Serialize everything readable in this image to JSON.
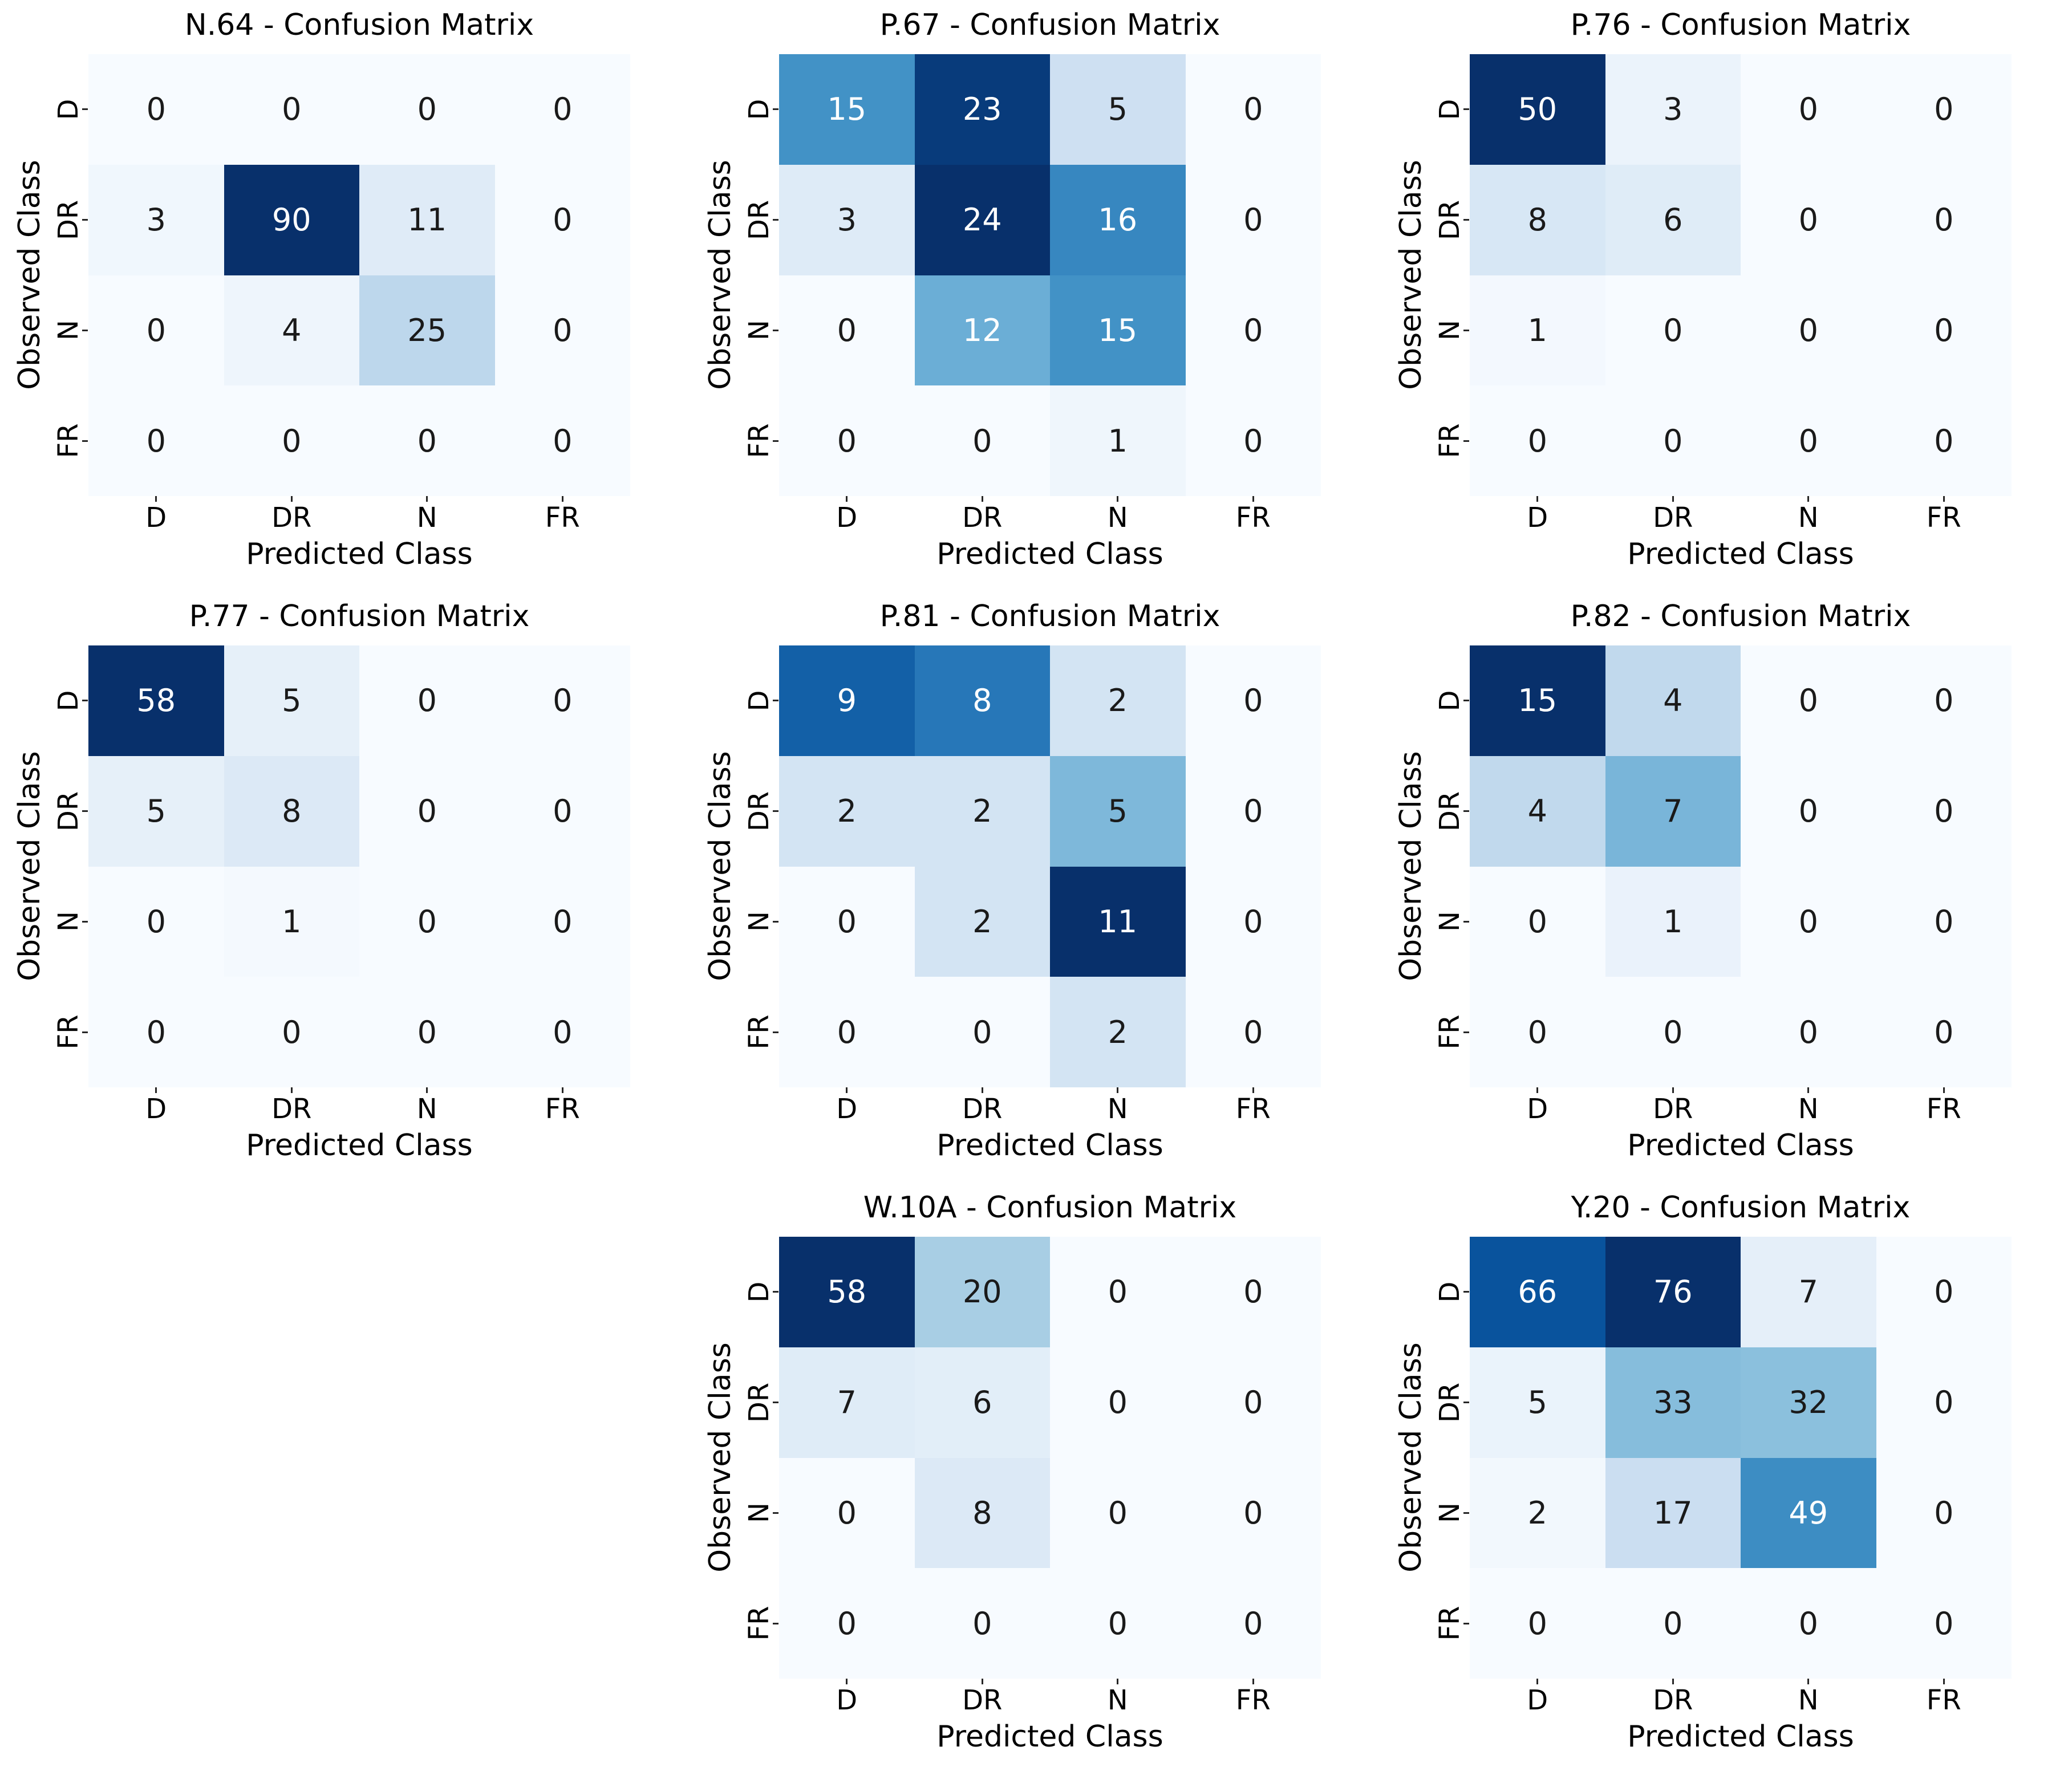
{
  "figure_background": "#ffffff",
  "palette": {
    "colormap": "Blues",
    "cmap_low": "#f7fbff",
    "cmap_high": "#08306b",
    "annotation_dark_text": "#1a1a1a",
    "annotation_light_text": "#ffffff"
  },
  "chart_data": [
    {
      "type": "heatmap",
      "title": "N.64 - Confusion Matrix",
      "xlabel": "Predicted Class",
      "ylabel": "Observed Class",
      "x_ticklabels": [
        "D",
        "DR",
        "N",
        "FR"
      ],
      "y_ticklabels": [
        "D",
        "DR",
        "N",
        "FR"
      ],
      "colormap": "Blues",
      "grid_position": {
        "row": 0,
        "col": 0
      },
      "values": [
        [
          0,
          0,
          0,
          0
        ],
        [
          3,
          90,
          11,
          0
        ],
        [
          0,
          4,
          25,
          0
        ],
        [
          0,
          0,
          0,
          0
        ]
      ]
    },
    {
      "type": "heatmap",
      "title": "P.67 - Confusion Matrix",
      "xlabel": "Predicted Class",
      "ylabel": "Observed Class",
      "x_ticklabels": [
        "D",
        "DR",
        "N",
        "FR"
      ],
      "y_ticklabels": [
        "D",
        "DR",
        "N",
        "FR"
      ],
      "colormap": "Blues",
      "grid_position": {
        "row": 0,
        "col": 1
      },
      "values": [
        [
          15,
          23,
          5,
          0
        ],
        [
          3,
          24,
          16,
          0
        ],
        [
          0,
          12,
          15,
          0
        ],
        [
          0,
          0,
          1,
          0
        ]
      ]
    },
    {
      "type": "heatmap",
      "title": "P.76 - Confusion Matrix",
      "xlabel": "Predicted Class",
      "ylabel": "Observed Class",
      "x_ticklabels": [
        "D",
        "DR",
        "N",
        "FR"
      ],
      "y_ticklabels": [
        "D",
        "DR",
        "N",
        "FR"
      ],
      "colormap": "Blues",
      "grid_position": {
        "row": 0,
        "col": 2
      },
      "values": [
        [
          50,
          3,
          0,
          0
        ],
        [
          8,
          6,
          0,
          0
        ],
        [
          1,
          0,
          0,
          0
        ],
        [
          0,
          0,
          0,
          0
        ]
      ]
    },
    {
      "type": "heatmap",
      "title": "P.77 - Confusion Matrix",
      "xlabel": "Predicted Class",
      "ylabel": "Observed Class",
      "x_ticklabels": [
        "D",
        "DR",
        "N",
        "FR"
      ],
      "y_ticklabels": [
        "D",
        "DR",
        "N",
        "FR"
      ],
      "colormap": "Blues",
      "grid_position": {
        "row": 1,
        "col": 0
      },
      "values": [
        [
          58,
          5,
          0,
          0
        ],
        [
          5,
          8,
          0,
          0
        ],
        [
          0,
          1,
          0,
          0
        ],
        [
          0,
          0,
          0,
          0
        ]
      ]
    },
    {
      "type": "heatmap",
      "title": "P.81 - Confusion Matrix",
      "xlabel": "Predicted Class",
      "ylabel": "Observed Class",
      "x_ticklabels": [
        "D",
        "DR",
        "N",
        "FR"
      ],
      "y_ticklabels": [
        "D",
        "DR",
        "N",
        "FR"
      ],
      "colormap": "Blues",
      "grid_position": {
        "row": 1,
        "col": 1
      },
      "values": [
        [
          9,
          8,
          2,
          0
        ],
        [
          2,
          2,
          5,
          0
        ],
        [
          0,
          2,
          11,
          0
        ],
        [
          0,
          0,
          2,
          0
        ]
      ]
    },
    {
      "type": "heatmap",
      "title": "P.82 - Confusion Matrix",
      "xlabel": "Predicted Class",
      "ylabel": "Observed Class",
      "x_ticklabels": [
        "D",
        "DR",
        "N",
        "FR"
      ],
      "y_ticklabels": [
        "D",
        "DR",
        "N",
        "FR"
      ],
      "colormap": "Blues",
      "grid_position": {
        "row": 1,
        "col": 2
      },
      "values": [
        [
          15,
          4,
          0,
          0
        ],
        [
          4,
          7,
          0,
          0
        ],
        [
          0,
          1,
          0,
          0
        ],
        [
          0,
          0,
          0,
          0
        ]
      ]
    },
    {
      "type": "heatmap",
      "title": "W.10A - Confusion Matrix",
      "xlabel": "Predicted Class",
      "ylabel": "Observed Class",
      "x_ticklabels": [
        "D",
        "DR",
        "N",
        "FR"
      ],
      "y_ticklabels": [
        "D",
        "DR",
        "N",
        "FR"
      ],
      "colormap": "Blues",
      "grid_position": {
        "row": 2,
        "col": 1
      },
      "values": [
        [
          58,
          20,
          0,
          0
        ],
        [
          7,
          6,
          0,
          0
        ],
        [
          0,
          8,
          0,
          0
        ],
        [
          0,
          0,
          0,
          0
        ]
      ]
    },
    {
      "type": "heatmap",
      "title": "Y.20 - Confusion Matrix",
      "xlabel": "Predicted Class",
      "ylabel": "Observed Class",
      "x_ticklabels": [
        "D",
        "DR",
        "N",
        "FR"
      ],
      "y_ticklabels": [
        "D",
        "DR",
        "N",
        "FR"
      ],
      "colormap": "Blues",
      "grid_position": {
        "row": 2,
        "col": 2
      },
      "values": [
        [
          66,
          76,
          7,
          0
        ],
        [
          5,
          33,
          32,
          0
        ],
        [
          2,
          17,
          49,
          0
        ],
        [
          0,
          0,
          0,
          0
        ]
      ]
    }
  ]
}
